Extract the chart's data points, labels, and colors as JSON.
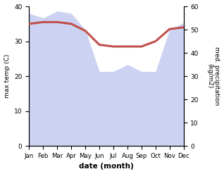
{
  "months": [
    "Jan",
    "Feb",
    "Mar",
    "Apr",
    "May",
    "Jun",
    "Jul",
    "Aug",
    "Sep",
    "Oct",
    "Nov",
    "Dec"
  ],
  "max_temp": [
    35,
    35.5,
    35.5,
    35,
    33,
    29,
    28.5,
    28.5,
    28.5,
    30,
    33.5,
    34
  ],
  "precipitation": [
    57,
    55,
    58,
    57,
    50,
    32,
    32,
    35,
    32,
    32,
    50,
    53
  ],
  "temp_ylim": [
    0,
    40
  ],
  "precip_ylim": [
    0,
    60
  ],
  "temp_color": "#c0504d",
  "precip_color": "#aab4e8",
  "precip_fill_alpha": 0.6,
  "xlabel": "date (month)",
  "ylabel_left": "max temp (C)",
  "ylabel_right": "med. precipitation\n(kg/m2)",
  "bg_color": "#ffffff",
  "temp_linewidth": 2.2,
  "figsize": [
    3.18,
    2.47
  ],
  "dpi": 100
}
